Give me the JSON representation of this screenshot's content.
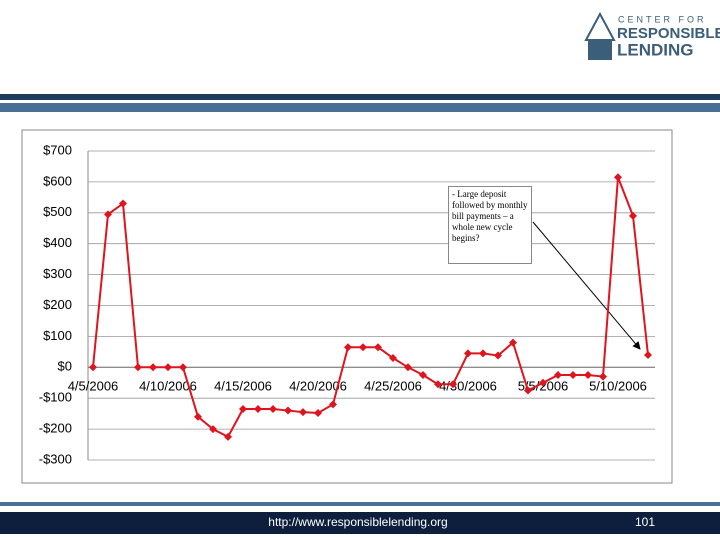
{
  "logo": {
    "line1": "CENTER FOR",
    "line2": "RESPONSIBLE",
    "line3": "LENDING"
  },
  "footer": {
    "url": "http://www.responsiblelending.org",
    "page": "101"
  },
  "chart_data": {
    "type": "line",
    "categories": [
      "4/5/2006",
      null,
      null,
      null,
      null,
      "4/10/2006",
      null,
      null,
      null,
      null,
      "4/15/2006",
      null,
      null,
      null,
      null,
      "4/20/2006",
      null,
      null,
      null,
      null,
      "4/25/2006",
      null,
      null,
      null,
      null,
      "4/30/2006",
      null,
      null,
      null,
      null,
      "5/5/2006",
      null,
      null,
      null,
      null,
      "5/10/2006",
      null,
      null
    ],
    "series": [
      {
        "color": "#e0141e",
        "values": [
          0,
          495,
          530,
          0,
          0,
          0,
          0,
          -160,
          -200,
          -225,
          -135,
          -135,
          -135,
          -140,
          -145,
          -148,
          -120,
          65,
          65,
          65,
          30,
          0,
          -25,
          -55,
          -55,
          45,
          45,
          38,
          80,
          -75,
          -50,
          -25,
          -25,
          -25,
          -30,
          615,
          490,
          40
        ]
      }
    ],
    "ylim": [
      -300,
      700
    ],
    "yticks": [
      {
        "value": 700,
        "label": "$700"
      },
      {
        "value": 600,
        "label": "$600"
      },
      {
        "value": 500,
        "label": "$500"
      },
      {
        "value": 400,
        "label": "$400"
      },
      {
        "value": 300,
        "label": "$300"
      },
      {
        "value": 200,
        "label": "$200"
      },
      {
        "value": 100,
        "label": "$100"
      },
      {
        "value": 0,
        "label": "$0"
      },
      {
        "value": -100,
        "label": "-$100"
      },
      {
        "value": -200,
        "label": "-$200"
      },
      {
        "value": -300,
        "label": "-$300"
      }
    ],
    "grid": true,
    "annotation": "- Large deposit followed by monthly bill payments – a whole new cycle begins?"
  }
}
